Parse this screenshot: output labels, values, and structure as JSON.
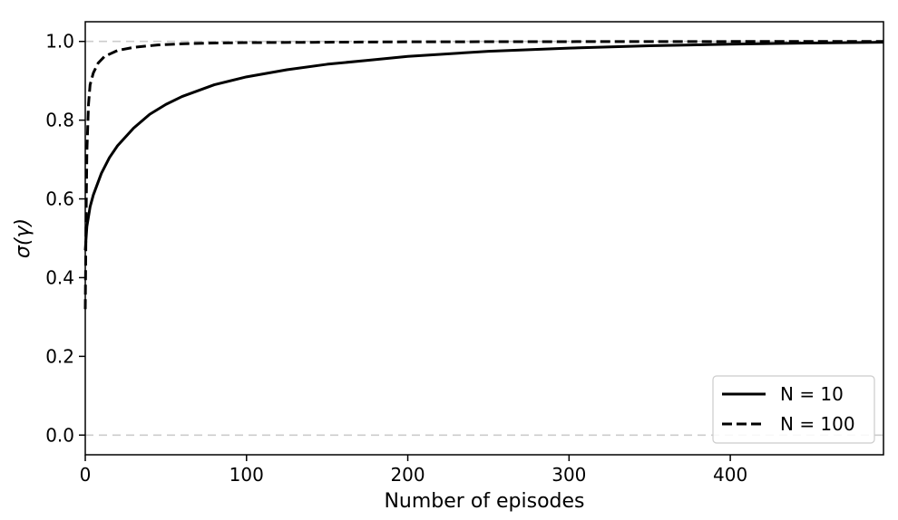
{
  "chart_data": {
    "type": "line",
    "xlabel": "Number of episodes",
    "ylabel": "σ(γ)",
    "xlim": [
      0,
      495
    ],
    "ylim": [
      -0.05,
      1.05
    ],
    "xticks": [
      0,
      100,
      200,
      300,
      400
    ],
    "yticks": [
      0.0,
      0.2,
      0.4,
      0.6,
      0.8,
      1.0
    ],
    "xtick_labels": [
      "0",
      "100",
      "200",
      "300",
      "400"
    ],
    "ytick_labels": [
      "0.0",
      "0.2",
      "0.4",
      "0.6",
      "0.8",
      "1.0"
    ],
    "reference_lines": [
      0.0,
      1.0
    ],
    "grid": false,
    "legend_position": "bottom-right",
    "series": [
      {
        "name": "N = 10",
        "style": "solid",
        "color": "#000000",
        "x": [
          0,
          1,
          3,
          5,
          10,
          15,
          20,
          30,
          40,
          50,
          60,
          80,
          100,
          125,
          150,
          175,
          200,
          250,
          300,
          350,
          400,
          450,
          495
        ],
        "y": [
          0.47,
          0.53,
          0.58,
          0.61,
          0.665,
          0.705,
          0.735,
          0.78,
          0.815,
          0.84,
          0.86,
          0.89,
          0.91,
          0.928,
          0.942,
          0.952,
          0.962,
          0.975,
          0.983,
          0.989,
          0.993,
          0.996,
          0.998
        ]
      },
      {
        "name": "N = 100",
        "style": "dashed",
        "color": "#000000",
        "x": [
          0,
          0.5,
          1,
          2,
          3,
          5,
          8,
          12,
          20,
          30,
          45,
          60,
          80,
          100,
          150,
          200,
          300,
          400,
          495
        ],
        "y": [
          0.32,
          0.55,
          0.72,
          0.84,
          0.89,
          0.92,
          0.945,
          0.962,
          0.977,
          0.985,
          0.991,
          0.994,
          0.996,
          0.997,
          0.998,
          0.999,
          0.9995,
          0.9998,
          1.0
        ]
      }
    ]
  }
}
